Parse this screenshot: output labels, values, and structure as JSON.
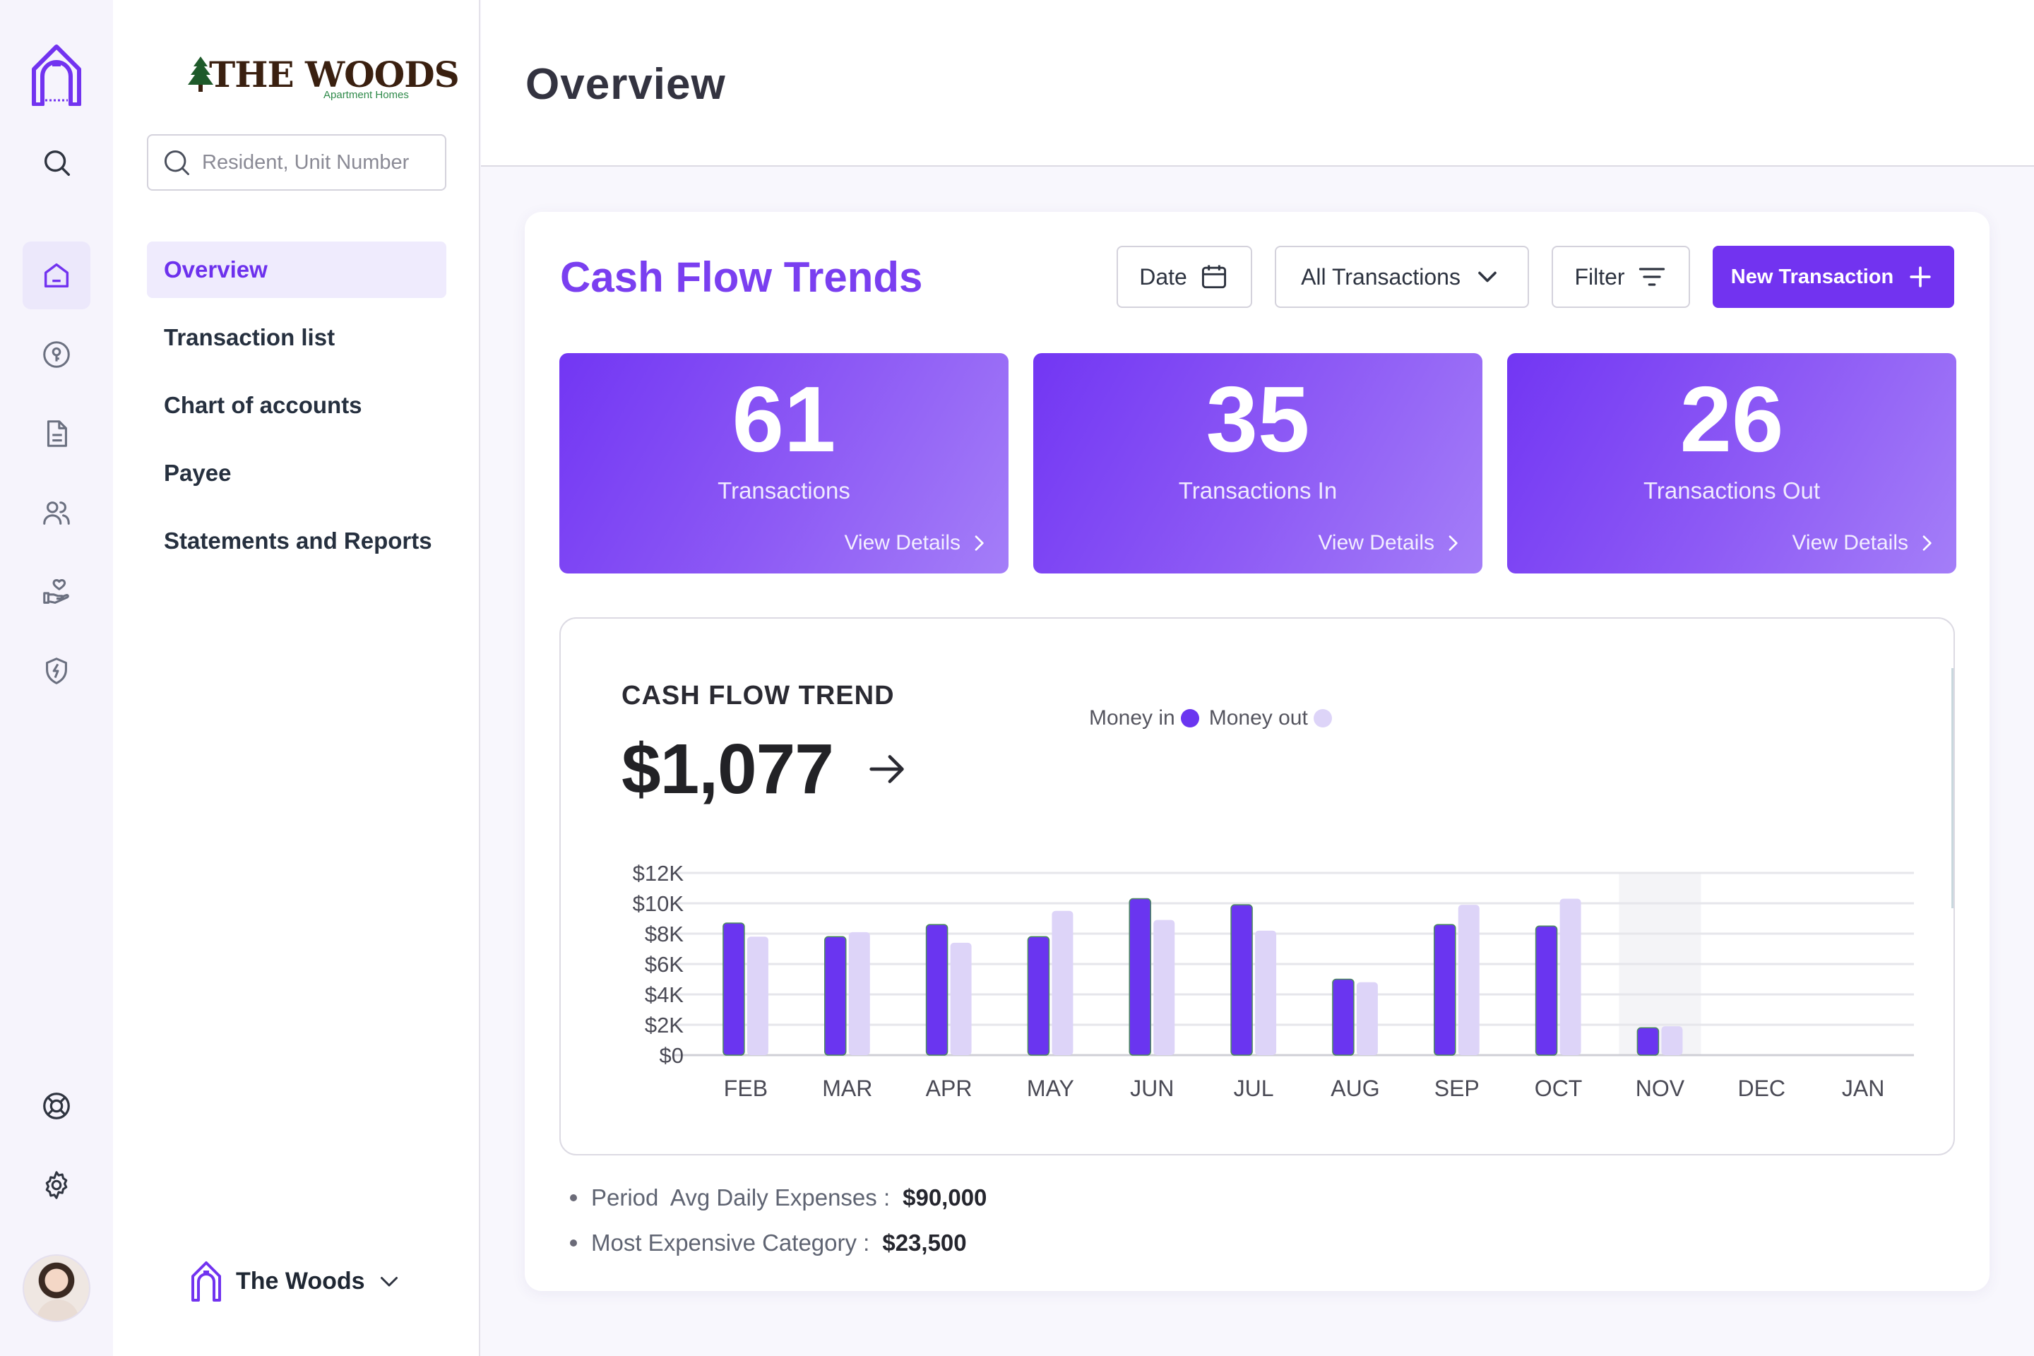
{
  "sidebar": {
    "brand": {
      "name": "THE WOODS",
      "subtitle": "Apartment Homes"
    },
    "search": {
      "placeholder": "Resident, Unit Number",
      "value": ""
    },
    "items": [
      {
        "label": "Overview",
        "active": true
      },
      {
        "label": "Transaction list",
        "active": false
      },
      {
        "label": "Chart of accounts",
        "active": false
      },
      {
        "label": "Payee",
        "active": false
      },
      {
        "label": "Statements and Reports",
        "active": false
      }
    ],
    "org": {
      "name": "The Woods"
    }
  },
  "rail": {
    "icons": [
      "home-logo-icon",
      "search-icon",
      "home-icon",
      "key-icon",
      "document-icon",
      "users-icon",
      "hand-heart-icon",
      "shield-icon",
      "lifebuoy-icon",
      "gear-icon"
    ],
    "active": "home-icon"
  },
  "header": {
    "title": "Overview"
  },
  "main": {
    "title": "Cash Flow Trends",
    "toolbar": {
      "date_label": "Date",
      "transactions_select": "All Transactions",
      "filter_label": "Filter",
      "new_label": "New Transaction"
    },
    "stats": [
      {
        "value": "61",
        "label": "Transactions",
        "link": "View Details"
      },
      {
        "value": "35",
        "label": "Transactions In",
        "link": "View Details"
      },
      {
        "value": "26",
        "label": "Transactions Out",
        "link": "View Details"
      }
    ],
    "summary": [
      {
        "label": "Period  Avg Daily Expenses :",
        "value": "$90,000"
      },
      {
        "label": "Most Expensive Category :",
        "value": "$23,500"
      }
    ]
  },
  "chart_data": {
    "type": "bar",
    "title": "CASH FLOW TREND",
    "total": "$1,077",
    "categories": [
      "FEB",
      "MAR",
      "APR",
      "MAY",
      "JUN",
      "JUL",
      "AUG",
      "SEP",
      "OCT",
      "NOV",
      "DEC",
      "JAN"
    ],
    "series": [
      {
        "name": "Money in",
        "color": "#6a35f0",
        "values": [
          8700,
          7800,
          8600,
          7800,
          10300,
          9900,
          5000,
          8600,
          8500,
          1800,
          null,
          null
        ]
      },
      {
        "name": "Money out",
        "color": "#ddd4f8",
        "values": [
          7800,
          8100,
          7400,
          9500,
          8900,
          8200,
          4800,
          9900,
          10300,
          1900,
          null,
          null
        ]
      }
    ],
    "y_ticks": [
      "$12K",
      "$10K",
      "$8K",
      "$6K",
      "$4K",
      "$2K",
      "$0"
    ],
    "ylim": [
      0,
      12000
    ],
    "highlight_category": "NOV",
    "grid": true,
    "legend_position": "top"
  },
  "colors": {
    "accent": "#7233f0",
    "money_in": "#6a35f0",
    "money_out": "#ddd4f8"
  }
}
